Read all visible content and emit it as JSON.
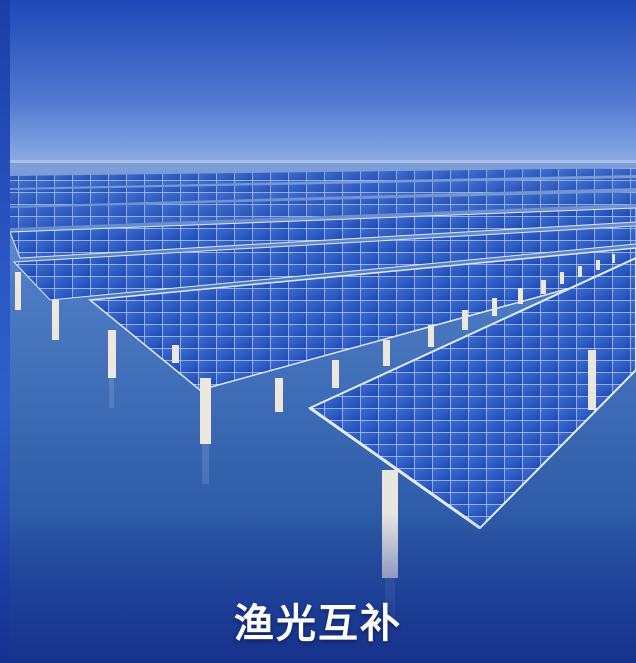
{
  "caption": "渔光互补",
  "colors": {
    "sky_top": "#1f47b8",
    "sky_bottom": "#7d9fe0",
    "water": "#3f6fb8",
    "water_deep": "#2350a6",
    "panel": "#2f5fc9",
    "panel_frame": "#e4ecf8",
    "pillar": "#e9e6df"
  }
}
